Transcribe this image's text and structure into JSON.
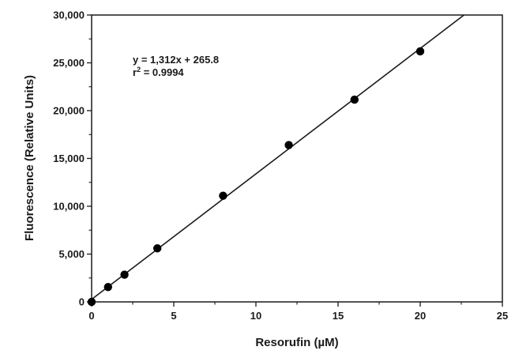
{
  "chart_data": {
    "type": "scatter",
    "title": "",
    "xlabel": "Resorufin (µM)",
    "ylabel": "Fluorescence (Relative Units)",
    "xlim": [
      0,
      25
    ],
    "ylim": [
      0,
      30000
    ],
    "x_ticks": [
      0,
      5,
      10,
      15,
      20,
      25
    ],
    "y_ticks": [
      0,
      5000,
      10000,
      15000,
      20000,
      25000,
      30000
    ],
    "x_tick_labels": [
      "0",
      "5",
      "10",
      "15",
      "20",
      "25"
    ],
    "y_tick_labels": [
      "0",
      "5,000",
      "10,000",
      "15,000",
      "20,000",
      "25,000",
      "30,000"
    ],
    "grid": false,
    "series": [
      {
        "x": [
          0,
          1,
          2,
          4,
          8,
          12,
          16,
          20
        ],
        "y": [
          0,
          1550,
          2850,
          5600,
          11100,
          16400,
          21150,
          26200
        ],
        "color": "#000000"
      }
    ],
    "fit_line": {
      "slope": 1312,
      "intercept": 265.8,
      "color": "#1a1a1a"
    },
    "annotation": {
      "equation": "y = 1,312x + 265.8",
      "r2_prefix": "r",
      "r2_sup": "2",
      "r2_value": " = 0.9994"
    }
  }
}
